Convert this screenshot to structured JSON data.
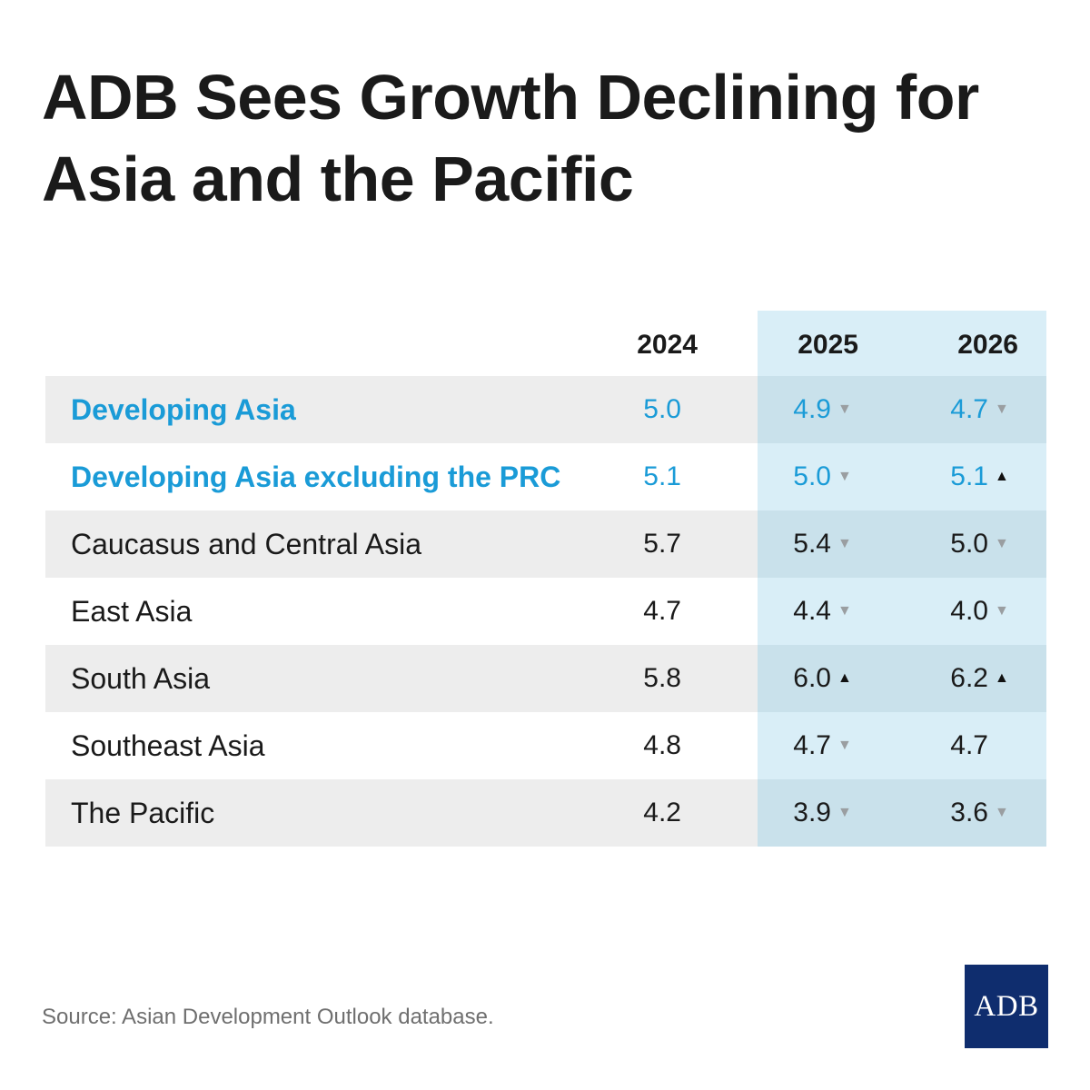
{
  "title": "ADB Sees Growth Declining for Asia and the Pacific",
  "source": "Source: Asian Development Outlook database.",
  "logo_text": "ADB",
  "colors": {
    "highlight_text": "#1a9bd7",
    "default_text": "#1a1a1a",
    "forecast_column_bg": "#d9eef7",
    "forecast_column_bg_shaded": "#c9e1eb",
    "row_shade": "#ededed",
    "arrow_down": "#9a9ea1",
    "arrow_up": "#111111",
    "logo_bg": "#0f2d6e"
  },
  "chart_data": {
    "type": "table",
    "title": "ADB Sees Growth Declining for Asia and the Pacific",
    "columns": [
      "2024",
      "2025",
      "2026"
    ],
    "rows": [
      {
        "label": "Developing Asia",
        "highlight": true,
        "shaded": true,
        "values": [
          "5.0",
          "4.9",
          "4.7"
        ],
        "arrows": [
          "",
          "down",
          "down"
        ]
      },
      {
        "label": "Developing Asia excluding the PRC",
        "highlight": true,
        "shaded": false,
        "values": [
          "5.1",
          "5.0",
          "5.1"
        ],
        "arrows": [
          "",
          "down",
          "up"
        ]
      },
      {
        "label": "Caucasus and Central Asia",
        "highlight": false,
        "shaded": true,
        "values": [
          "5.7",
          "5.4",
          "5.0"
        ],
        "arrows": [
          "",
          "down",
          "down"
        ]
      },
      {
        "label": "East Asia",
        "highlight": false,
        "shaded": false,
        "values": [
          "4.7",
          "4.4",
          "4.0"
        ],
        "arrows": [
          "",
          "down",
          "down"
        ]
      },
      {
        "label": "South Asia",
        "highlight": false,
        "shaded": true,
        "values": [
          "5.8",
          "6.0",
          "6.2"
        ],
        "arrows": [
          "",
          "up",
          "up"
        ]
      },
      {
        "label": "Southeast Asia",
        "highlight": false,
        "shaded": false,
        "values": [
          "4.8",
          "4.7",
          "4.7"
        ],
        "arrows": [
          "",
          "down",
          ""
        ]
      },
      {
        "label": "The Pacific",
        "highlight": false,
        "shaded": true,
        "values": [
          "4.2",
          "3.9",
          "3.6"
        ],
        "arrows": [
          "",
          "down",
          "down"
        ]
      }
    ],
    "source": "Source: Asian Development Outlook database."
  }
}
